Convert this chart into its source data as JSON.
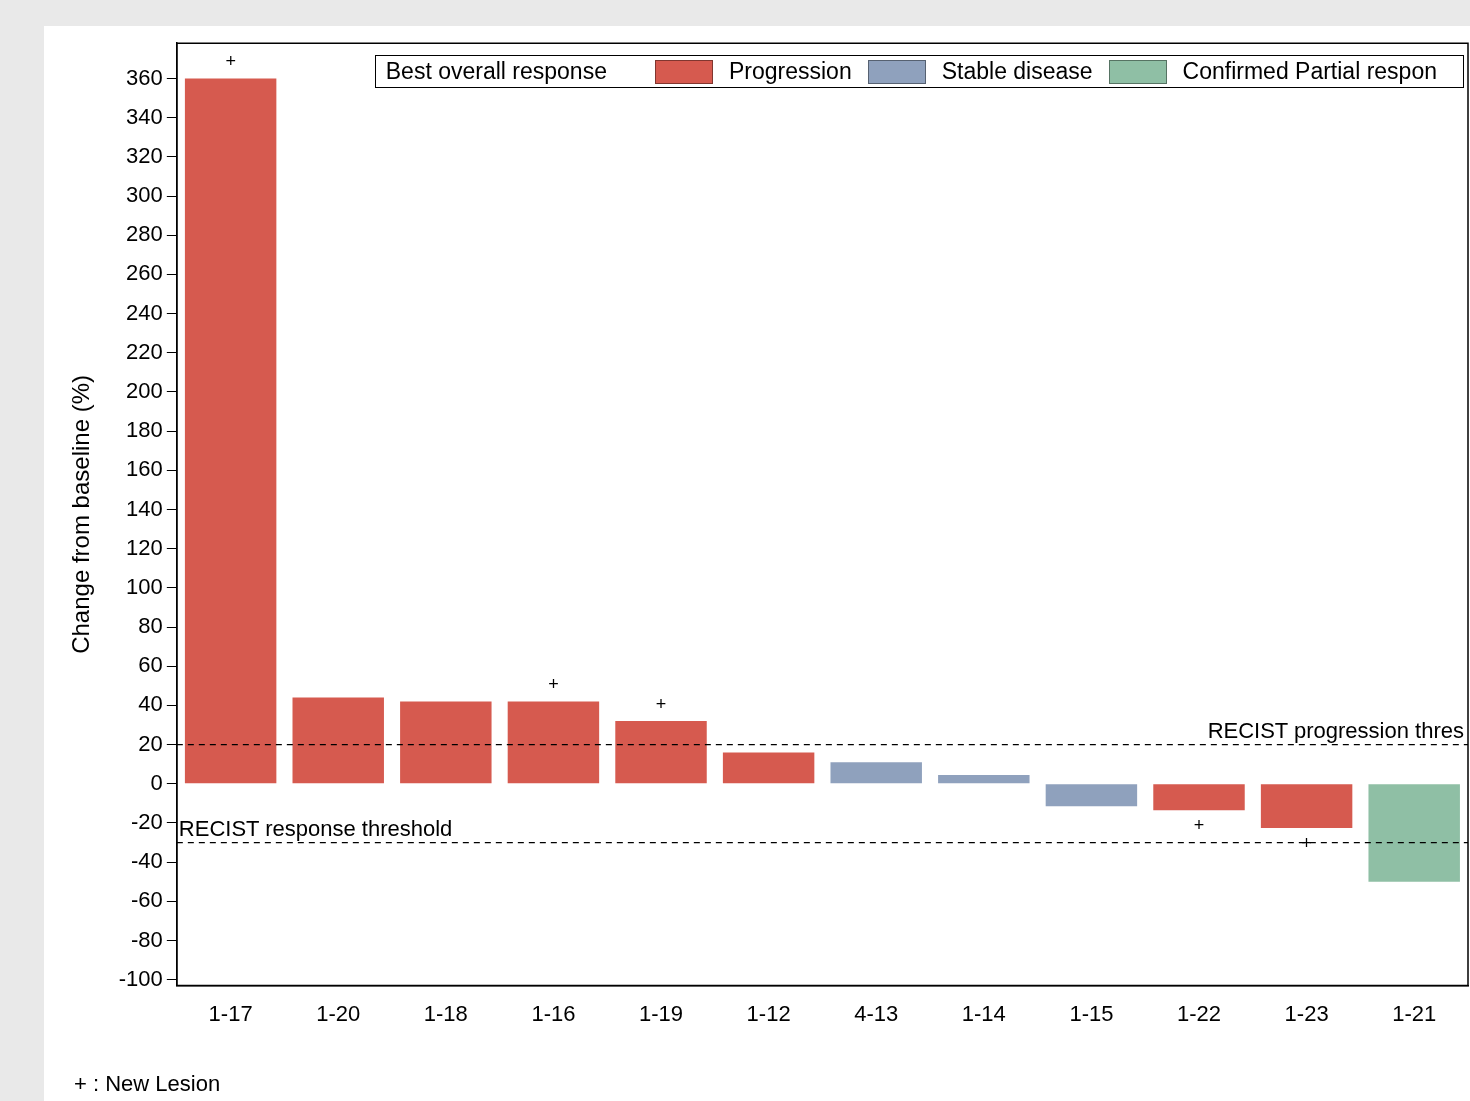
{
  "chart_data": {
    "type": "bar",
    "ylabel": "Change from baseline (%)",
    "legend_title": "Best overall response",
    "categories": [
      "1-17",
      "1-20",
      "1-18",
      "1-16",
      "1-19",
      "1-12",
      "4-13",
      "1-14",
      "1-15",
      "1-22",
      "1-23",
      "1-21"
    ],
    "series": [
      {
        "name": "Progression",
        "color": "#d65a4f",
        "values": [
          360,
          44,
          42,
          42,
          32,
          16,
          null,
          null,
          null,
          -13.5,
          -22.5,
          null
        ]
      },
      {
        "name": "Stable disease",
        "color": "#8fa1bd",
        "values": [
          null,
          null,
          null,
          null,
          null,
          null,
          11,
          4.5,
          -11.5,
          null,
          null,
          null
        ]
      },
      {
        "name": "Confirmed Partial respon",
        "color": "#8fbfa5",
        "values": [
          null,
          null,
          null,
          null,
          null,
          null,
          null,
          null,
          null,
          null,
          null,
          -50
        ]
      }
    ],
    "ylim": [
      -103,
      378
    ],
    "yticks": [
      -100,
      -80,
      -60,
      -40,
      -20,
      0,
      20,
      40,
      60,
      80,
      100,
      120,
      140,
      160,
      180,
      200,
      220,
      240,
      260,
      280,
      300,
      320,
      340,
      360
    ],
    "ref_lines": [
      {
        "axis": "y",
        "value": 20,
        "label": "RECIST progression thres",
        "line_style": "dashed"
      },
      {
        "axis": "y",
        "value": -30,
        "label": "RECIST response threshold",
        "line_style": "dashed"
      }
    ],
    "annotations": [
      {
        "text": "+",
        "x": "1-17",
        "y": 360
      },
      {
        "text": "+",
        "x": "1-16",
        "y": 42
      },
      {
        "text": "+",
        "x": "1-19",
        "y": 32
      },
      {
        "text": "+",
        "x": "1-22",
        "y": -13.5
      },
      {
        "text": "+",
        "x": "1-23",
        "y": -22.5
      },
      "+ : New Lesion"
    ],
    "legend": "top",
    "grid": false
  }
}
